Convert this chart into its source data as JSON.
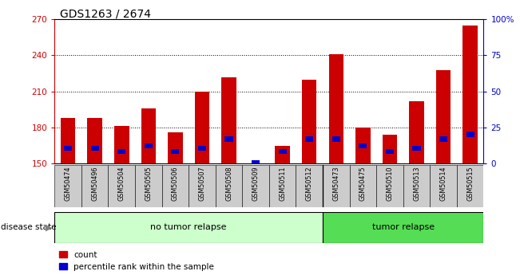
{
  "title": "GDS1263 / 2674",
  "samples": [
    "GSM50474",
    "GSM50496",
    "GSM50504",
    "GSM50505",
    "GSM50506",
    "GSM50507",
    "GSM50508",
    "GSM50509",
    "GSM50511",
    "GSM50512",
    "GSM50473",
    "GSM50475",
    "GSM50510",
    "GSM50513",
    "GSM50514",
    "GSM50515"
  ],
  "count_values": [
    188,
    188,
    181,
    196,
    176,
    210,
    222,
    150,
    165,
    220,
    241,
    180,
    174,
    202,
    228,
    265
  ],
  "percentile_bottom": [
    161,
    161,
    158,
    163,
    158,
    161,
    168,
    150,
    158,
    168,
    168,
    163,
    158,
    161,
    168,
    172
  ],
  "percentile_top": [
    165,
    165,
    162,
    167,
    162,
    165,
    173,
    153,
    162,
    173,
    173,
    167,
    162,
    165,
    173,
    177
  ],
  "no_tumor_count": 10,
  "tumor_count": 6,
  "y_min": 150,
  "y_max": 270,
  "y_ticks": [
    150,
    180,
    210,
    240,
    270
  ],
  "right_y_ticks": [
    0,
    25,
    50,
    75,
    100
  ],
  "right_y_labels": [
    "0",
    "25",
    "50",
    "75",
    "100%"
  ],
  "bar_color": "#cc0000",
  "blue_color": "#0000cc",
  "no_tumor_bg": "#ccffcc",
  "tumor_bg": "#55dd55",
  "label_bg": "#cccccc",
  "tick_color_left": "#cc0000",
  "tick_color_right": "#0000cc",
  "grid_color": "#000000",
  "fig_width": 6.51,
  "fig_height": 3.45,
  "bar_width": 0.55
}
